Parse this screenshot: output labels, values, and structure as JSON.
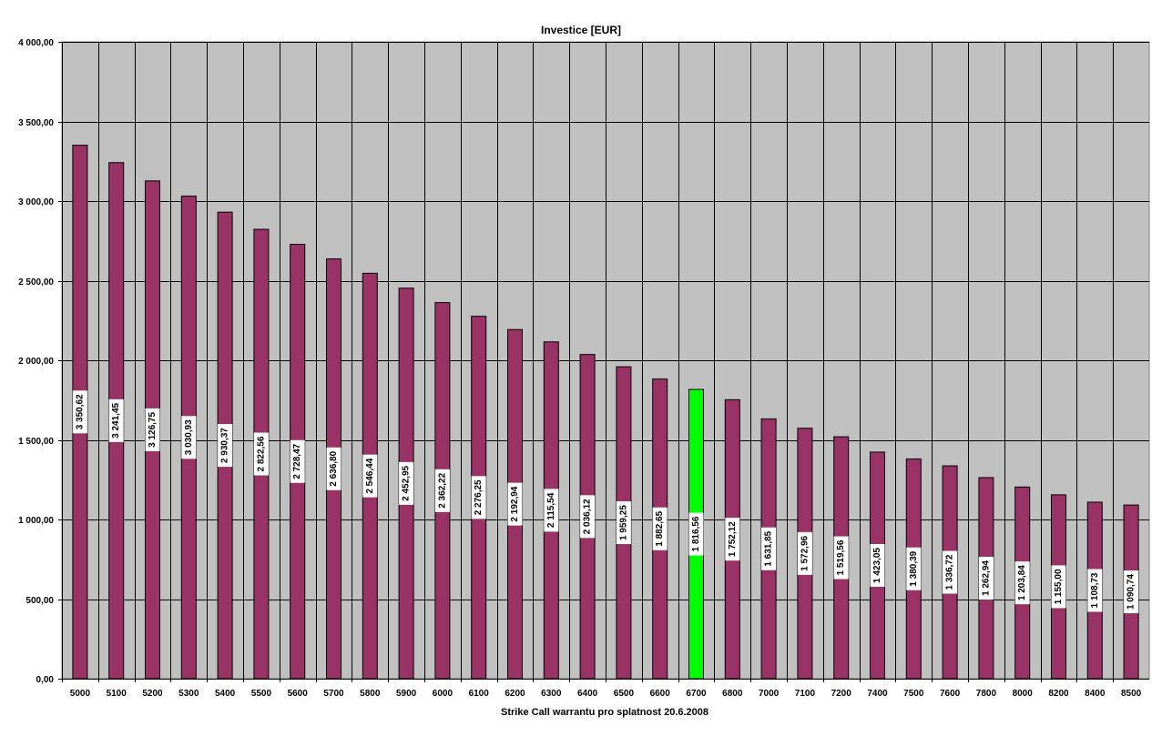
{
  "chart_data": {
    "type": "bar",
    "title": "Investice [EUR]",
    "xlabel": "Strike Call warrantu pro splatnost 20.6.2008",
    "ylabel": "",
    "ylim": [
      0,
      4000
    ],
    "y_ticks": [
      "0,00",
      "500,00",
      "1 000,00",
      "1 500,00",
      "2 000,00",
      "2 500,00",
      "3 000,00",
      "3 500,00",
      "4 000,00"
    ],
    "y_tick_values": [
      0,
      500,
      1000,
      1500,
      2000,
      2500,
      3000,
      3500,
      4000
    ],
    "categories": [
      "5000",
      "5100",
      "5200",
      "5300",
      "5400",
      "5500",
      "5600",
      "5700",
      "5800",
      "5900",
      "6000",
      "6100",
      "6200",
      "6300",
      "6400",
      "6500",
      "6600",
      "6700",
      "6800",
      "7000",
      "7100",
      "7200",
      "7400",
      "7500",
      "7600",
      "7800",
      "8000",
      "8200",
      "8400",
      "8500"
    ],
    "values": [
      3350.62,
      3241.45,
      3126.75,
      3030.93,
      2930.37,
      2822.56,
      2728.47,
      2636.8,
      2546.44,
      2452.95,
      2362.22,
      2276.25,
      2192.94,
      2115.54,
      2036.12,
      1959.25,
      1882.65,
      1816.56,
      1752.12,
      1631.85,
      1572.96,
      1519.56,
      1423.05,
      1380.39,
      1336.72,
      1262.94,
      1203.84,
      1155.0,
      1108.73,
      1090.74
    ],
    "value_labels": [
      "3 350,62",
      "3 241,45",
      "3 126,75",
      "3 030,93",
      "2 930,37",
      "2 822,56",
      "2 728,47",
      "2 636,80",
      "2 546,44",
      "2 452,95",
      "2 362,22",
      "2 276,25",
      "2 192,94",
      "2 115,54",
      "2 036,12",
      "1 959,25",
      "1 882,65",
      "1 816,56",
      "1 752,12",
      "1 631,85",
      "1 572,96",
      "1 519,56",
      "1 423,05",
      "1 380,39",
      "1 336,72",
      "1 262,94",
      "1 203,84",
      "1 155,00",
      "1 108,73",
      "1 090,74"
    ],
    "highlight_category": "6700",
    "grid": true,
    "legend": "none",
    "colors": {
      "bar": "#993366",
      "highlight": "#00ff00",
      "plot_background": "#c0c0c0",
      "gridline": "#000000",
      "label_background": "#ffffff"
    }
  }
}
